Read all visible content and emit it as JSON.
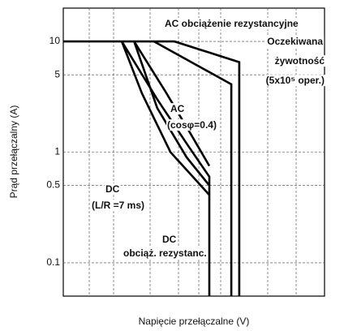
{
  "chart_data": {
    "type": "line",
    "y_label": "Prąd przełączalny (A)",
    "x_label": "Napięcie przełączalne (V)",
    "log_x": true,
    "log_y": true,
    "grid": true,
    "xlim": [
      1,
      1000
    ],
    "ylim": [
      0.05,
      20
    ],
    "yticks": [
      10,
      5,
      1,
      0.5,
      0.1
    ],
    "series": [
      {
        "color": "#000000",
        "x": [
          1,
          18.9,
          105,
          105
        ],
        "values": [
          10,
          10,
          6.5,
          0.05
        ]
      },
      {
        "color": "#000000",
        "x": [
          11,
          85,
          85
        ],
        "values": [
          10,
          4.1,
          0.05
        ]
      },
      {
        "color": "#000000",
        "x": [
          4.7,
          12,
          26,
          47.5,
          47.5
        ],
        "values": [
          10,
          3,
          1.2,
          0.6,
          0.05
        ]
      },
      {
        "color": "#000000",
        "x": [
          6.5,
          15,
          30,
          47.5
        ],
        "values": [
          10,
          3.5,
          1.4,
          0.75
        ]
      },
      {
        "color": "#000000",
        "x": [
          4.7,
          8,
          17,
          47.5
        ],
        "values": [
          10,
          3.4,
          1.0,
          0.41
        ]
      },
      {
        "color": "#000000",
        "x": [
          6.5,
          12,
          26,
          47.5
        ],
        "values": [
          10,
          2.5,
          0.9,
          0.5
        ]
      }
    ],
    "annotations": [
      "AC obciążenie rezystancyjne",
      "Oczekiwana",
      "żywotność",
      "(5x10⁵ oper.)",
      "AC",
      "(cosφ=0.4)",
      "DC",
      "(L/R =7 ms)",
      "DC",
      "obciąż. rezystanc."
    ]
  }
}
